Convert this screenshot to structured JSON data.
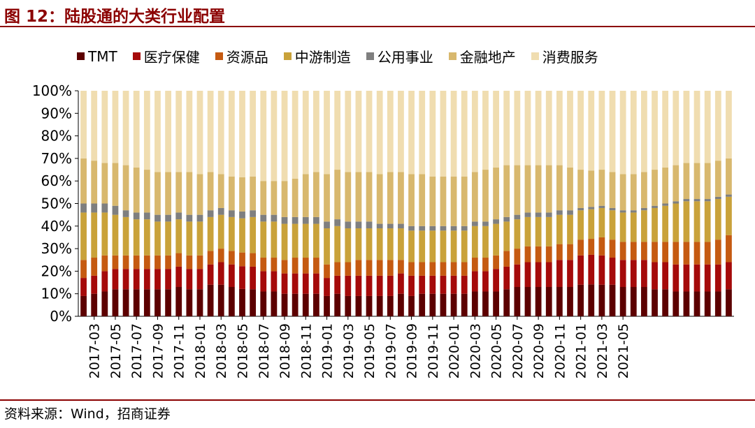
{
  "title": "图 12：陆股通的大类行业配置",
  "source": "资料来源：Wind，招商证券",
  "chart_data": {
    "type": "bar",
    "stacked": true,
    "title": "",
    "xlabel": "",
    "ylabel": "",
    "ylim": [
      0,
      100
    ],
    "y_ticks": [
      "0%",
      "10%",
      "20%",
      "30%",
      "40%",
      "50%",
      "60%",
      "70%",
      "80%",
      "90%",
      "100%"
    ],
    "x_tick_labels": [
      "2017-03",
      "2017-05",
      "2017-07",
      "2017-09",
      "2017-11",
      "2018-01",
      "2018-03",
      "2018-05",
      "2018-07",
      "2018-09",
      "2018-11",
      "2019-01",
      "2019-03",
      "2019-05",
      "2019-07",
      "2019-09",
      "2019-11",
      "2020-01",
      "2020-03",
      "2020-05",
      "2020-07",
      "2020-09",
      "2020-11",
      "2021-01",
      "2021-03",
      "2021-05"
    ],
    "legend_position": "top",
    "grid": false,
    "series": [
      {
        "name": "TMT",
        "color": "#5C0000",
        "values": [
          9,
          10,
          11,
          12,
          12,
          12,
          12,
          12,
          12,
          13,
          12,
          12,
          14,
          14,
          13,
          12,
          12,
          11,
          11,
          10,
          10,
          10,
          10,
          9,
          10,
          9,
          9,
          9,
          9,
          9,
          10,
          9,
          10,
          10,
          10,
          10,
          10,
          11,
          11,
          11,
          12,
          13,
          13,
          13,
          13,
          13,
          13,
          14,
          14,
          14,
          14,
          13,
          13,
          13,
          12,
          12,
          11,
          11,
          11,
          11,
          11,
          12
        ]
      },
      {
        "name": "医疗保健",
        "color": "#A50A0A",
        "values": [
          8,
          8,
          9,
          9,
          9,
          9,
          9,
          9,
          9,
          9,
          9,
          9,
          9,
          10,
          10,
          10,
          10,
          9,
          9,
          9,
          9,
          9,
          9,
          8,
          8,
          9,
          9,
          9,
          9,
          9,
          9,
          9,
          8,
          8,
          8,
          8,
          8,
          9,
          9,
          10,
          10,
          10,
          11,
          11,
          11,
          12,
          12,
          13,
          13,
          13,
          12,
          12,
          12,
          12,
          12,
          12,
          12,
          12,
          12,
          12,
          12,
          12
        ]
      },
      {
        "name": "资源品",
        "color": "#C55A11",
        "values": [
          8,
          8,
          7,
          6,
          6,
          6,
          6,
          6,
          6,
          6,
          6,
          6,
          6,
          6,
          6,
          6,
          6,
          6,
          6,
          6,
          7,
          7,
          7,
          6,
          6,
          6,
          7,
          7,
          7,
          7,
          6,
          6,
          6,
          6,
          6,
          6,
          6,
          6,
          6,
          6,
          7,
          7,
          7,
          7,
          7,
          7,
          7,
          7,
          7,
          8,
          8,
          8,
          8,
          8,
          9,
          9,
          10,
          10,
          10,
          10,
          11,
          12
        ]
      },
      {
        "name": "中游制造",
        "color": "#C9A23A",
        "values": [
          21,
          20,
          19,
          18,
          17,
          16,
          16,
          15,
          15,
          15,
          15,
          15,
          15,
          15,
          15,
          15,
          16,
          16,
          16,
          16,
          15,
          15,
          15,
          16,
          16,
          15,
          14,
          14,
          14,
          14,
          14,
          14,
          14,
          14,
          14,
          14,
          14,
          14,
          14,
          14,
          13,
          13,
          13,
          13,
          13,
          13,
          13,
          13,
          13,
          13,
          13,
          13,
          13,
          14,
          15,
          16,
          17,
          18,
          18,
          18,
          18,
          17
        ]
      },
      {
        "name": "公用事业",
        "color": "#7F7F7F",
        "values": [
          4,
          4,
          4,
          4,
          3,
          3,
          3,
          3,
          3,
          3,
          3,
          3,
          3,
          3,
          3,
          3,
          3,
          3,
          3,
          3,
          3,
          3,
          3,
          3,
          3,
          3,
          3,
          3,
          2,
          2,
          2,
          2,
          2,
          2,
          2,
          2,
          2,
          2,
          2,
          2,
          2,
          2,
          2,
          2,
          2,
          2,
          2,
          1,
          1,
          1,
          1,
          1,
          1,
          1,
          1,
          1,
          1,
          1,
          1,
          1,
          1,
          1
        ]
      },
      {
        "name": "金融地产",
        "color": "#D8B86E",
        "values": [
          20,
          19,
          18,
          19,
          20,
          20,
          19,
          19,
          19,
          18,
          19,
          18,
          17,
          15,
          15,
          15,
          15,
          15,
          15,
          16,
          17,
          19,
          20,
          21,
          22,
          22,
          22,
          22,
          22,
          23,
          23,
          23,
          23,
          22,
          22,
          22,
          22,
          22,
          23,
          23,
          23,
          22,
          21,
          21,
          21,
          20,
          19,
          17,
          16,
          16,
          16,
          16,
          16,
          16,
          16,
          16,
          16,
          16,
          16,
          16,
          16,
          16
        ]
      },
      {
        "name": "消费服务",
        "color": "#F0DDB0",
        "values": [
          30,
          31,
          32,
          32,
          33,
          34,
          35,
          36,
          36,
          36,
          36,
          37,
          36,
          37,
          38,
          38,
          38,
          40,
          40,
          40,
          39,
          37,
          36,
          37,
          35,
          36,
          36,
          36,
          37,
          36,
          36,
          37,
          37,
          38,
          38,
          38,
          38,
          36,
          35,
          34,
          33,
          33,
          33,
          33,
          33,
          33,
          34,
          35,
          35,
          35,
          36,
          37,
          37,
          36,
          35,
          34,
          33,
          32,
          32,
          32,
          31,
          30
        ]
      }
    ]
  }
}
